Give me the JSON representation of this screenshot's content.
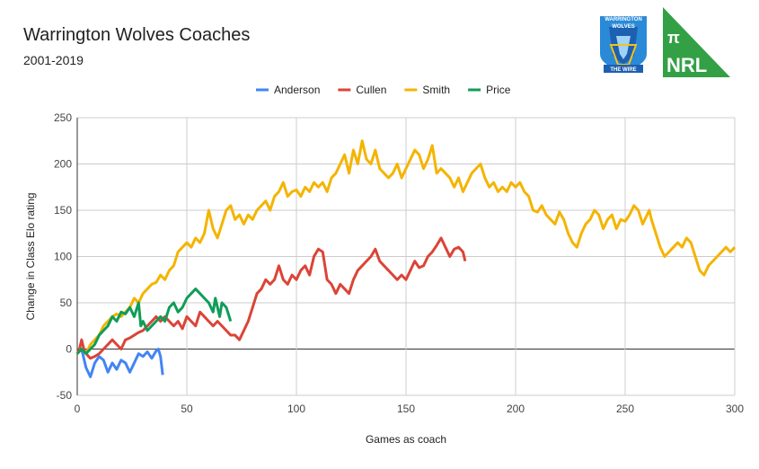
{
  "logos": {
    "club_text": [
      "WARRINGTON",
      "WOLVES",
      "THE WIRE"
    ],
    "badge_text": [
      "π",
      "NRL"
    ],
    "badge_color": "#34a046"
  },
  "chart_data": {
    "type": "line",
    "title": "Warrington Wolves Coaches",
    "subtitle": "2001-2019",
    "xlabel": "Games as coach",
    "ylabel": "Change in Class Elo rating",
    "xlim": [
      0,
      300
    ],
    "ylim": [
      -50,
      250
    ],
    "xticks": [
      "0",
      "50",
      "100",
      "150",
      "200",
      "250",
      "300"
    ],
    "yticks": [
      "-50",
      "0",
      "50",
      "100",
      "150",
      "200",
      "250"
    ],
    "grid": true,
    "legend": "top",
    "series": [
      {
        "name": "Anderson",
        "color": "#4285f4",
        "points": [
          [
            0,
            -5
          ],
          [
            2,
            0
          ],
          [
            4,
            -20
          ],
          [
            6,
            -30
          ],
          [
            8,
            -15
          ],
          [
            10,
            -8
          ],
          [
            12,
            -12
          ],
          [
            14,
            -25
          ],
          [
            16,
            -15
          ],
          [
            18,
            -22
          ],
          [
            20,
            -12
          ],
          [
            22,
            -15
          ],
          [
            24,
            -25
          ],
          [
            26,
            -15
          ],
          [
            28,
            -5
          ],
          [
            30,
            -8
          ],
          [
            32,
            -3
          ],
          [
            34,
            -10
          ],
          [
            36,
            -2
          ],
          [
            37,
            0
          ],
          [
            38,
            -8
          ],
          [
            39,
            -28
          ]
        ]
      },
      {
        "name": "Cullen",
        "color": "#db4437",
        "points": [
          [
            0,
            -5
          ],
          [
            1,
            0
          ],
          [
            2,
            10
          ],
          [
            3,
            0
          ],
          [
            4,
            -5
          ],
          [
            6,
            -10
          ],
          [
            8,
            -8
          ],
          [
            10,
            -5
          ],
          [
            12,
            0
          ],
          [
            14,
            5
          ],
          [
            16,
            10
          ],
          [
            18,
            5
          ],
          [
            20,
            0
          ],
          [
            22,
            10
          ],
          [
            24,
            12
          ],
          [
            26,
            15
          ],
          [
            28,
            18
          ],
          [
            30,
            20
          ],
          [
            32,
            25
          ],
          [
            34,
            30
          ],
          [
            36,
            35
          ],
          [
            38,
            30
          ],
          [
            40,
            35
          ],
          [
            42,
            30
          ],
          [
            44,
            25
          ],
          [
            46,
            30
          ],
          [
            48,
            22
          ],
          [
            50,
            35
          ],
          [
            52,
            30
          ],
          [
            54,
            25
          ],
          [
            56,
            40
          ],
          [
            58,
            35
          ],
          [
            60,
            30
          ],
          [
            62,
            25
          ],
          [
            64,
            30
          ],
          [
            66,
            25
          ],
          [
            68,
            20
          ],
          [
            70,
            15
          ],
          [
            72,
            15
          ],
          [
            74,
            10
          ],
          [
            76,
            20
          ],
          [
            78,
            30
          ],
          [
            80,
            45
          ],
          [
            82,
            60
          ],
          [
            84,
            65
          ],
          [
            86,
            75
          ],
          [
            88,
            70
          ],
          [
            90,
            75
          ],
          [
            92,
            90
          ],
          [
            94,
            75
          ],
          [
            96,
            70
          ],
          [
            98,
            80
          ],
          [
            100,
            75
          ],
          [
            102,
            85
          ],
          [
            104,
            90
          ],
          [
            106,
            80
          ],
          [
            108,
            100
          ],
          [
            110,
            108
          ],
          [
            112,
            105
          ],
          [
            114,
            75
          ],
          [
            116,
            70
          ],
          [
            118,
            60
          ],
          [
            120,
            70
          ],
          [
            122,
            65
          ],
          [
            124,
            60
          ],
          [
            126,
            75
          ],
          [
            128,
            85
          ],
          [
            130,
            90
          ],
          [
            132,
            95
          ],
          [
            134,
            100
          ],
          [
            136,
            108
          ],
          [
            138,
            95
          ],
          [
            140,
            90
          ],
          [
            142,
            85
          ],
          [
            144,
            80
          ],
          [
            146,
            75
          ],
          [
            148,
            80
          ],
          [
            150,
            75
          ],
          [
            152,
            85
          ],
          [
            154,
            95
          ],
          [
            156,
            88
          ],
          [
            158,
            90
          ],
          [
            160,
            100
          ],
          [
            162,
            105
          ],
          [
            164,
            112
          ],
          [
            166,
            120
          ],
          [
            168,
            110
          ],
          [
            170,
            100
          ],
          [
            172,
            108
          ],
          [
            174,
            110
          ],
          [
            176,
            105
          ],
          [
            177,
            95
          ]
        ]
      },
      {
        "name": "Smith",
        "color": "#f4b400",
        "points": [
          [
            0,
            -5
          ],
          [
            2,
            0
          ],
          [
            4,
            -5
          ],
          [
            6,
            5
          ],
          [
            8,
            10
          ],
          [
            10,
            15
          ],
          [
            12,
            25
          ],
          [
            14,
            30
          ],
          [
            16,
            35
          ],
          [
            18,
            38
          ],
          [
            20,
            35
          ],
          [
            22,
            40
          ],
          [
            24,
            45
          ],
          [
            26,
            55
          ],
          [
            28,
            50
          ],
          [
            30,
            60
          ],
          [
            32,
            65
          ],
          [
            34,
            70
          ],
          [
            36,
            72
          ],
          [
            38,
            80
          ],
          [
            40,
            75
          ],
          [
            42,
            85
          ],
          [
            44,
            90
          ],
          [
            46,
            105
          ],
          [
            48,
            110
          ],
          [
            50,
            115
          ],
          [
            52,
            110
          ],
          [
            54,
            120
          ],
          [
            56,
            115
          ],
          [
            58,
            125
          ],
          [
            60,
            150
          ],
          [
            62,
            130
          ],
          [
            64,
            120
          ],
          [
            66,
            135
          ],
          [
            68,
            150
          ],
          [
            70,
            155
          ],
          [
            72,
            140
          ],
          [
            74,
            145
          ],
          [
            76,
            135
          ],
          [
            78,
            145
          ],
          [
            80,
            140
          ],
          [
            82,
            150
          ],
          [
            84,
            155
          ],
          [
            86,
            160
          ],
          [
            88,
            150
          ],
          [
            90,
            165
          ],
          [
            92,
            170
          ],
          [
            94,
            180
          ],
          [
            96,
            165
          ],
          [
            98,
            170
          ],
          [
            100,
            172
          ],
          [
            102,
            165
          ],
          [
            104,
            175
          ],
          [
            106,
            170
          ],
          [
            108,
            180
          ],
          [
            110,
            175
          ],
          [
            112,
            180
          ],
          [
            114,
            170
          ],
          [
            116,
            185
          ],
          [
            118,
            190
          ],
          [
            120,
            200
          ],
          [
            122,
            210
          ],
          [
            124,
            190
          ],
          [
            126,
            215
          ],
          [
            128,
            200
          ],
          [
            130,
            225
          ],
          [
            132,
            205
          ],
          [
            134,
            200
          ],
          [
            136,
            215
          ],
          [
            138,
            195
          ],
          [
            140,
            190
          ],
          [
            142,
            185
          ],
          [
            144,
            190
          ],
          [
            146,
            200
          ],
          [
            148,
            185
          ],
          [
            150,
            195
          ],
          [
            152,
            205
          ],
          [
            154,
            215
          ],
          [
            156,
            210
          ],
          [
            158,
            195
          ],
          [
            160,
            205
          ],
          [
            162,
            220
          ],
          [
            164,
            190
          ],
          [
            166,
            195
          ],
          [
            168,
            190
          ],
          [
            170,
            185
          ],
          [
            172,
            175
          ],
          [
            174,
            185
          ],
          [
            176,
            170
          ],
          [
            178,
            180
          ],
          [
            180,
            190
          ],
          [
            182,
            195
          ],
          [
            184,
            200
          ],
          [
            186,
            185
          ],
          [
            188,
            175
          ],
          [
            190,
            180
          ],
          [
            192,
            170
          ],
          [
            194,
            175
          ],
          [
            196,
            170
          ],
          [
            198,
            180
          ],
          [
            200,
            175
          ],
          [
            202,
            180
          ],
          [
            204,
            170
          ],
          [
            206,
            165
          ],
          [
            208,
            150
          ],
          [
            210,
            148
          ],
          [
            212,
            155
          ],
          [
            214,
            145
          ],
          [
            216,
            140
          ],
          [
            218,
            135
          ],
          [
            220,
            148
          ],
          [
            222,
            140
          ],
          [
            224,
            125
          ],
          [
            226,
            115
          ],
          [
            228,
            110
          ],
          [
            230,
            125
          ],
          [
            232,
            135
          ],
          [
            234,
            140
          ],
          [
            236,
            150
          ],
          [
            238,
            145
          ],
          [
            240,
            130
          ],
          [
            242,
            140
          ],
          [
            244,
            145
          ],
          [
            246,
            130
          ],
          [
            248,
            140
          ],
          [
            250,
            138
          ],
          [
            252,
            145
          ],
          [
            254,
            155
          ],
          [
            256,
            150
          ],
          [
            258,
            135
          ],
          [
            260,
            145
          ],
          [
            261,
            150
          ],
          [
            262,
            140
          ],
          [
            264,
            125
          ],
          [
            266,
            110
          ],
          [
            268,
            100
          ],
          [
            270,
            105
          ],
          [
            272,
            110
          ],
          [
            274,
            115
          ],
          [
            276,
            110
          ],
          [
            278,
            120
          ],
          [
            280,
            115
          ],
          [
            282,
            100
          ],
          [
            284,
            85
          ],
          [
            286,
            80
          ],
          [
            288,
            90
          ],
          [
            290,
            95
          ],
          [
            292,
            100
          ],
          [
            294,
            105
          ],
          [
            296,
            110
          ],
          [
            298,
            105
          ],
          [
            300,
            110
          ]
        ]
      },
      {
        "name": "Price",
        "color": "#0f9d58",
        "points": [
          [
            0,
            -5
          ],
          [
            2,
            0
          ],
          [
            4,
            -5
          ],
          [
            6,
            0
          ],
          [
            8,
            5
          ],
          [
            10,
            15
          ],
          [
            12,
            20
          ],
          [
            14,
            25
          ],
          [
            16,
            35
          ],
          [
            18,
            30
          ],
          [
            20,
            40
          ],
          [
            22,
            38
          ],
          [
            24,
            45
          ],
          [
            26,
            35
          ],
          [
            28,
            50
          ],
          [
            29,
            25
          ],
          [
            30,
            30
          ],
          [
            32,
            20
          ],
          [
            34,
            25
          ],
          [
            36,
            30
          ],
          [
            38,
            35
          ],
          [
            40,
            30
          ],
          [
            42,
            45
          ],
          [
            44,
            50
          ],
          [
            46,
            40
          ],
          [
            48,
            45
          ],
          [
            50,
            55
          ],
          [
            52,
            60
          ],
          [
            54,
            65
          ],
          [
            56,
            60
          ],
          [
            58,
            55
          ],
          [
            60,
            50
          ],
          [
            62,
            40
          ],
          [
            63,
            55
          ],
          [
            64,
            45
          ],
          [
            65,
            35
          ],
          [
            66,
            50
          ],
          [
            68,
            45
          ],
          [
            70,
            30
          ]
        ]
      }
    ]
  }
}
